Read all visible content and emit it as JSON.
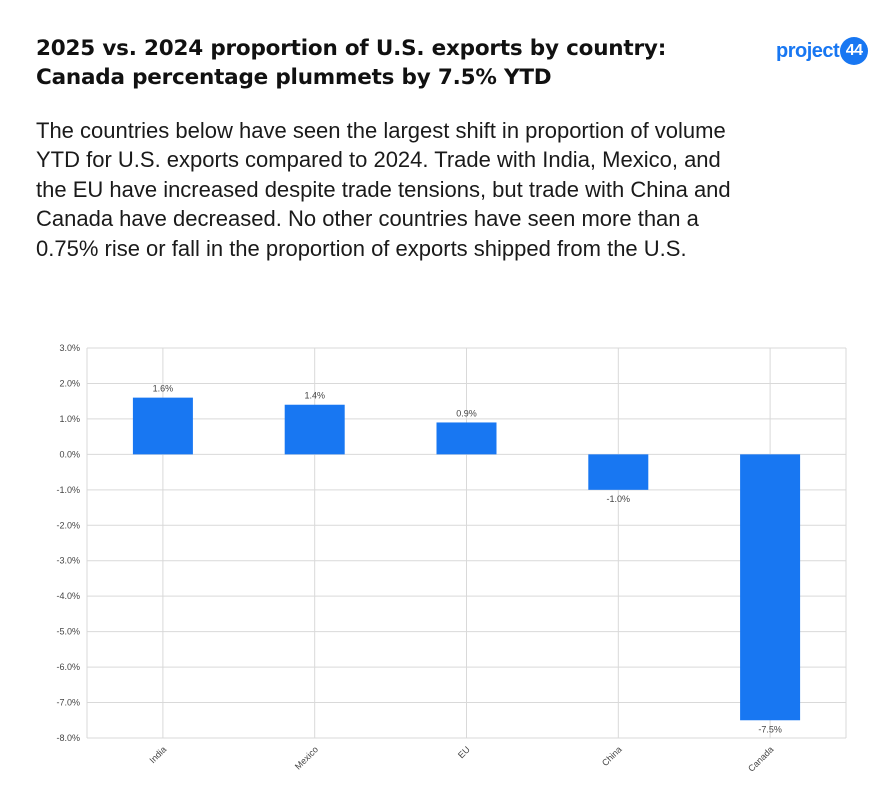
{
  "header": {
    "title": "2025 vs. 2024 proportion of U.S. exports by country: Canada percentage plummets by 7.5% YTD",
    "logo_text": "project",
    "logo_badge": "44",
    "description": "The countries below have seen the largest shift in proportion of volume YTD for U.S. exports compared to 2024. Trade with India, Mexico, and the EU have increased despite trade tensions, but trade with China and Canada have decreased. No other countries have seen more than a 0.75% rise or fall in the proportion of exports shipped from the U.S."
  },
  "colors": {
    "bar": "#1877f2",
    "grid": "#d9d9d9",
    "text": "#444444"
  },
  "chart_data": {
    "type": "bar",
    "categories": [
      "India",
      "Mexico",
      "EU",
      "China",
      "Canada"
    ],
    "values": [
      1.6,
      1.4,
      0.9,
      -1.0,
      -7.5
    ],
    "data_labels": [
      "1.6%",
      "1.4%",
      "0.9%",
      "-1.0%",
      "-7.5%"
    ],
    "ylim": [
      -8,
      3
    ],
    "yticks": [
      3,
      2,
      1,
      0,
      -1,
      -2,
      -3,
      -4,
      -5,
      -6,
      -7,
      -8
    ],
    "ytick_labels": [
      "3.0%",
      "2.0%",
      "1.0%",
      "0.0%",
      "-1.0%",
      "-2.0%",
      "-3.0%",
      "-4.0%",
      "-5.0%",
      "-6.0%",
      "-7.0%",
      "-8.0%"
    ],
    "xlabel": "",
    "ylabel": "",
    "grid": true,
    "legend": "none"
  }
}
